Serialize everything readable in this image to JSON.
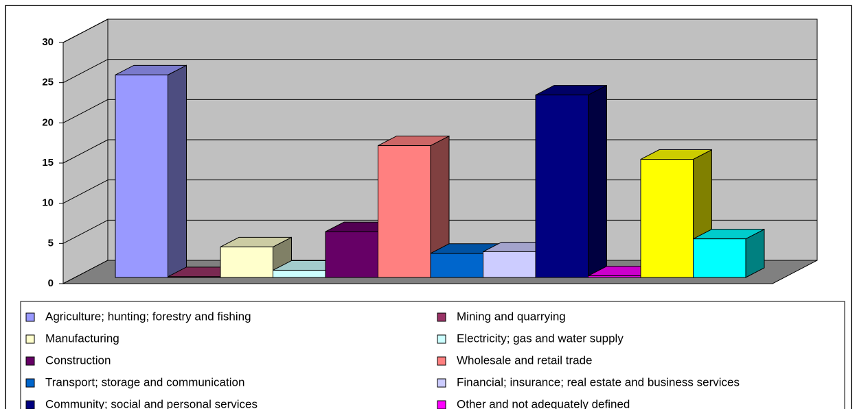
{
  "chart_data": {
    "type": "bar",
    "categories": [
      "Agriculture; hunting; forestry and fishing",
      "Mining and quarrying",
      "Manufacturing",
      "Electricity; gas and water supply",
      "Construction",
      "Wholesale and retail trade",
      "Transport; storage and communication",
      "Financial; insurance; real estate and business services",
      "Community; social and personal services",
      "Other and not adequately defined",
      null,
      null
    ],
    "values": [
      25.2,
      0.1,
      3.8,
      0.9,
      5.7,
      16.4,
      3.0,
      3.2,
      22.7,
      0.2,
      14.7,
      4.8
    ],
    "colors": [
      "#9999ff",
      "#993366",
      "#ffffcc",
      "#ccffff",
      "#660066",
      "#ff8080",
      "#0066cc",
      "#ccccff",
      "#000080",
      "#ff00ff",
      "#ffff00",
      "#00ffff"
    ],
    "ylim": [
      0,
      30
    ],
    "yticks": [
      0,
      5,
      10,
      15,
      20,
      25,
      30
    ],
    "grid": true
  }
}
